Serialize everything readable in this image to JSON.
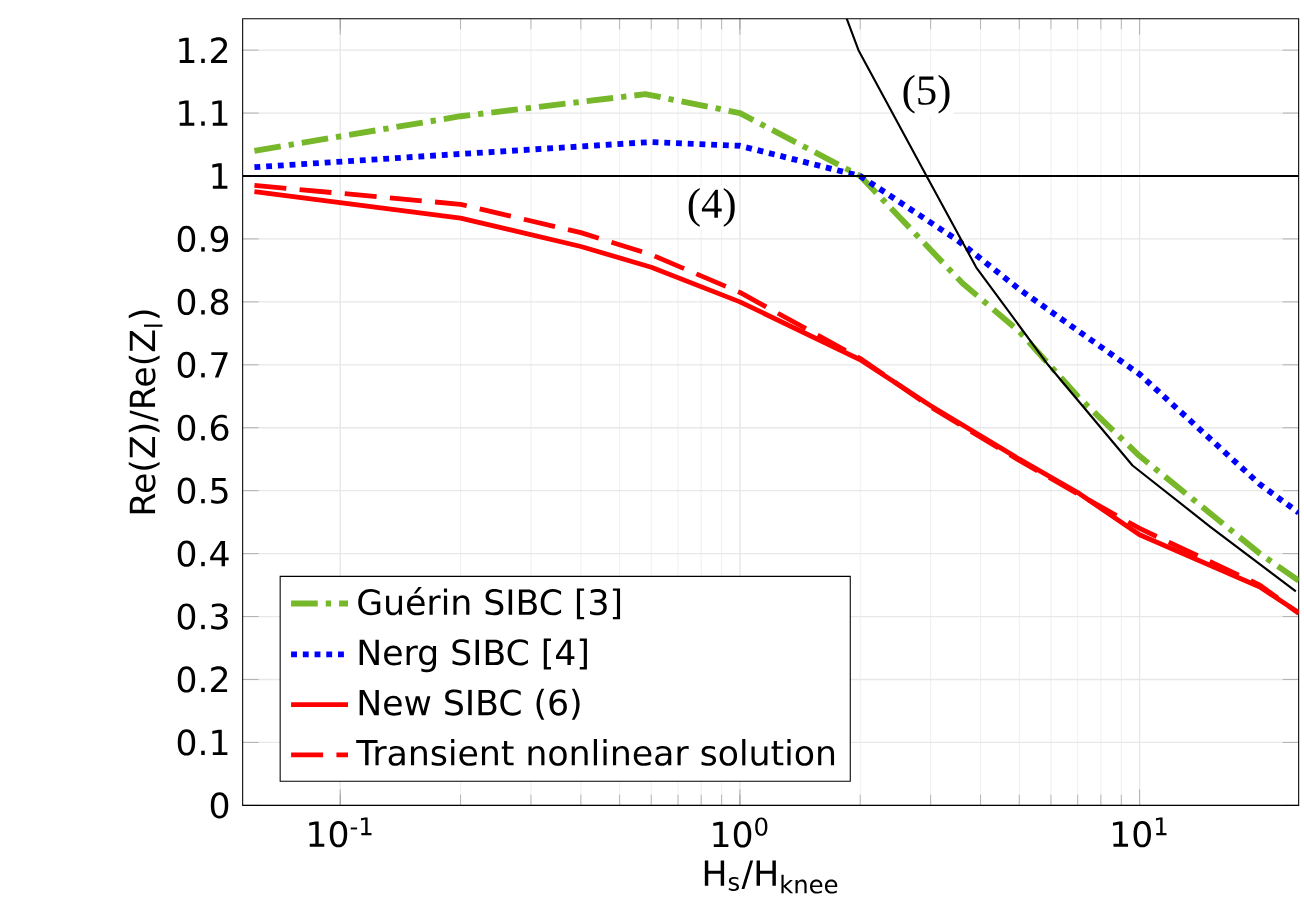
{
  "chart_data": {
    "type": "line",
    "xlabel": "H$_{s}$/H$_{knee}$",
    "ylabel": "Re(Z)/Re(Z$_{l}$)",
    "log": "x",
    "grid": true,
    "legend": "bottom left",
    "xlim": [
      0.057,
      25
    ],
    "ylim": [
      0,
      1.25
    ],
    "xticks": [
      {
        "value": 0.1,
        "label": "10$^{-1}$"
      },
      {
        "value": 1,
        "label": "10$^{0}$"
      },
      {
        "value": 10,
        "label": "10$^{1}$"
      }
    ],
    "yticks": [
      0,
      0.1,
      0.2,
      0.3,
      0.4,
      0.5,
      0.6,
      0.7,
      0.8,
      0.9,
      1,
      1.1,
      1.2
    ],
    "series": [
      {
        "name": "Guérin SIBC [3]",
        "color": "#77b82a",
        "line_style": "dashdot",
        "x": [
          0.061,
          0.2,
          0.58,
          1.0,
          2.0,
          3.6,
          5.0,
          7.0,
          10,
          20,
          25
        ],
        "values": [
          1.04,
          1.095,
          1.13,
          1.1,
          1.0,
          0.83,
          0.753,
          0.65,
          0.555,
          0.4,
          0.357
        ]
      },
      {
        "name": "Nerg SIBC [4]",
        "color": "#0000ff",
        "line_style": "dotted",
        "x": [
          0.061,
          0.2,
          0.6,
          1.0,
          2.0,
          3.5,
          5.0,
          10,
          20,
          25
        ],
        "values": [
          1.014,
          1.035,
          1.054,
          1.048,
          1.0,
          0.898,
          0.82,
          0.685,
          0.51,
          0.465
        ]
      },
      {
        "name": "New SIBC (6)",
        "color": "#ff0000",
        "line_style": "solid",
        "x": [
          0.061,
          0.2,
          0.4,
          0.6,
          1.0,
          2.0,
          3.0,
          5.0,
          7.0,
          10,
          20,
          25
        ],
        "values": [
          0.975,
          0.933,
          0.888,
          0.855,
          0.8,
          0.708,
          0.635,
          0.55,
          0.497,
          0.43,
          0.347,
          0.306
        ]
      },
      {
        "name": "Transient nonlinear solution",
        "color": "#ff0000",
        "line_style": "dashed",
        "x": [
          0.061,
          0.2,
          0.4,
          0.6,
          1.0,
          2.0,
          3.0,
          5.0,
          7.0,
          10,
          20,
          25
        ],
        "values": [
          0.985,
          0.955,
          0.91,
          0.875,
          0.815,
          0.71,
          0.633,
          0.548,
          0.495,
          0.44,
          0.35,
          0.305
        ]
      },
      {
        "color": "#000000",
        "line_style": "solid",
        "x": [
          0.057,
          25
        ],
        "values": [
          1,
          1
        ]
      },
      {
        "color": "#000000",
        "line_style": "solid",
        "x": [
          1.85,
          1.98,
          2.93,
          3.9,
          5.9,
          9.6,
          15,
          24.6
        ],
        "values": [
          1.25,
          1.2,
          1.0,
          0.855,
          0.7,
          0.54,
          0.443,
          0.34
        ]
      }
    ],
    "annotations": [
      {
        "text": "(4)",
        "x": 0.85,
        "y": 0.95
      },
      {
        "text": "(5)",
        "x": 2.93,
        "y": 1.13
      }
    ]
  }
}
